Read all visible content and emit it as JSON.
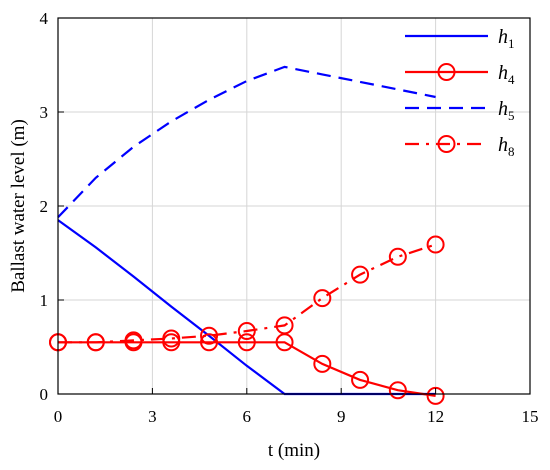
{
  "chart_data": {
    "type": "line",
    "title": "",
    "xlabel": "t (min)",
    "ylabel": "Ballast water level (m)",
    "xlim": [
      0,
      15
    ],
    "ylim": [
      0,
      4
    ],
    "xticks": [
      0,
      3,
      6,
      9,
      12,
      15
    ],
    "yticks": [
      0,
      1,
      2,
      3,
      4
    ],
    "grid": true,
    "legend": "top-right",
    "series": [
      {
        "name": "h1",
        "name_base": "h",
        "name_sub": "1",
        "color": "#0000ff",
        "line": "solid",
        "marker": "none",
        "x": [
          0,
          1.2,
          2.4,
          3.6,
          4.8,
          6.0,
          7.2,
          8.4,
          9.6,
          10.8,
          12.0
        ],
        "y": [
          1.85,
          1.56,
          1.25,
          0.93,
          0.62,
          0.3,
          0.0,
          0.0,
          0.0,
          0.0,
          0.0
        ]
      },
      {
        "name": "h4",
        "name_base": "h",
        "name_sub": "4",
        "color": "#ff0000",
        "line": "solid",
        "marker": "circle",
        "x": [
          0,
          1.2,
          2.4,
          3.6,
          4.8,
          6.0,
          7.2,
          8.4,
          9.6,
          10.8,
          12.0
        ],
        "y": [
          0.55,
          0.55,
          0.55,
          0.55,
          0.55,
          0.55,
          0.55,
          0.32,
          0.15,
          0.04,
          -0.02
        ]
      },
      {
        "name": "h5",
        "name_base": "h",
        "name_sub": "5",
        "color": "#0000ff",
        "line": "dashed",
        "marker": "none",
        "x": [
          0,
          1.2,
          2.4,
          3.6,
          4.8,
          6.0,
          7.2,
          8.4,
          9.6,
          10.8,
          12.0
        ],
        "y": [
          1.88,
          2.3,
          2.63,
          2.9,
          3.13,
          3.33,
          3.48,
          3.4,
          3.32,
          3.24,
          3.16
        ]
      },
      {
        "name": "h8",
        "name_base": "h",
        "name_sub": "8",
        "color": "#ff0000",
        "line": "dashdot",
        "marker": "circle",
        "x": [
          0,
          1.2,
          2.4,
          3.6,
          4.8,
          6.0,
          7.2,
          8.4,
          9.6,
          10.8,
          12.0
        ],
        "y": [
          0.55,
          0.55,
          0.57,
          0.59,
          0.62,
          0.67,
          0.73,
          1.02,
          1.27,
          1.46,
          1.59
        ]
      }
    ]
  }
}
